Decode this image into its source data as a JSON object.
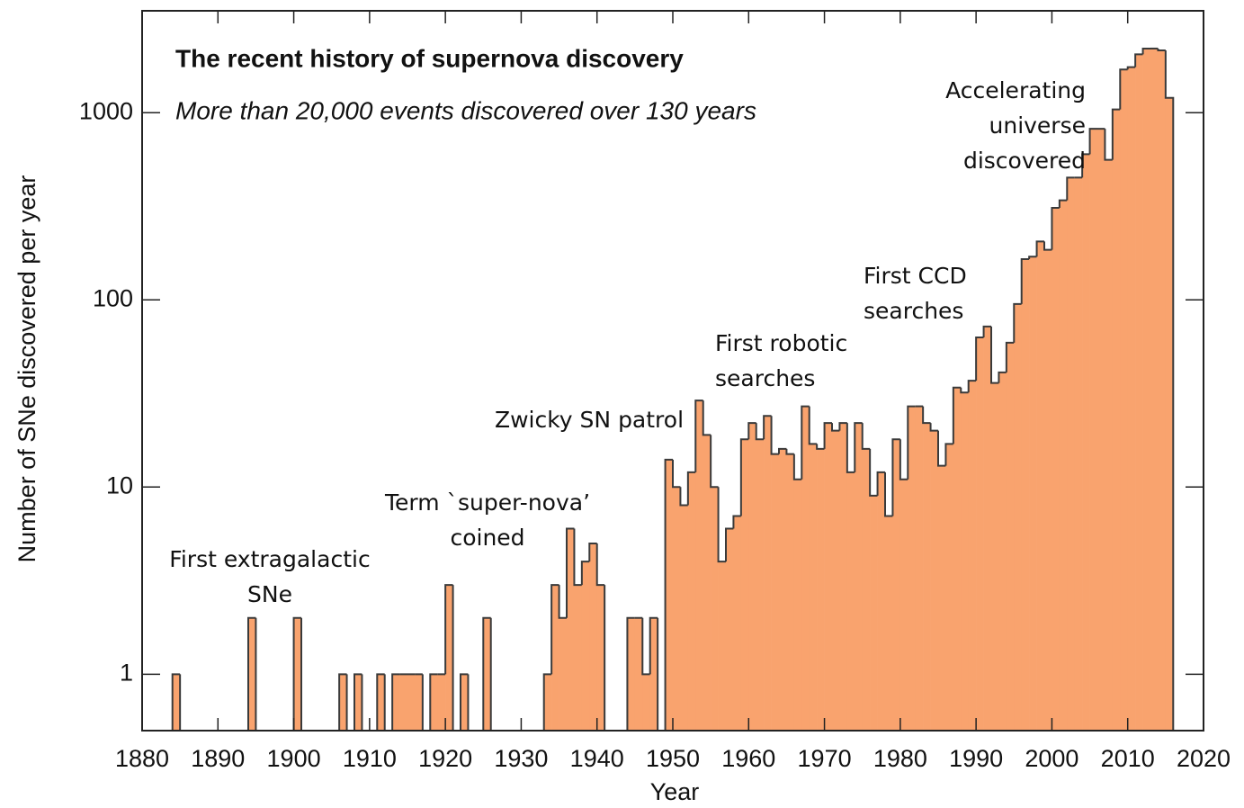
{
  "chart_data": {
    "type": "histogram",
    "title": "The recent history of supernova discovery",
    "subtitle": "More than 20,000 events discovered over 130 years",
    "x_label": "Year",
    "y_label": "Number of SNe discovered per year",
    "log_y": true,
    "color": "#f9a36e",
    "edge_color": "#3a3a3a",
    "xlim": [
      1880,
      2020
    ],
    "ylim": [
      0.5,
      3500
    ],
    "xticks": [
      1880,
      1890,
      1900,
      1910,
      1920,
      1930,
      1940,
      1950,
      1960,
      1970,
      1980,
      1990,
      2000,
      2010,
      2020
    ],
    "yticks": [
      1,
      10,
      100,
      1000
    ],
    "bins": [
      1884,
      1885,
      1886,
      1887,
      1888,
      1889,
      1890,
      1891,
      1892,
      1893,
      1894,
      1895,
      1896,
      1897,
      1898,
      1899,
      1900,
      1901,
      1902,
      1903,
      1904,
      1905,
      1906,
      1907,
      1908,
      1909,
      1910,
      1911,
      1912,
      1913,
      1914,
      1915,
      1916,
      1917,
      1918,
      1919,
      1920,
      1921,
      1922,
      1923,
      1924,
      1925,
      1926,
      1927,
      1928,
      1929,
      1930,
      1931,
      1932,
      1933,
      1934,
      1935,
      1936,
      1937,
      1938,
      1939,
      1940,
      1941,
      1942,
      1943,
      1944,
      1945,
      1946,
      1947,
      1948,
      1949,
      1950,
      1951,
      1952,
      1953,
      1954,
      1955,
      1956,
      1957,
      1958,
      1959,
      1960,
      1961,
      1962,
      1963,
      1964,
      1965,
      1966,
      1967,
      1968,
      1969,
      1970,
      1971,
      1972,
      1973,
      1974,
      1975,
      1976,
      1977,
      1978,
      1979,
      1980,
      1981,
      1982,
      1983,
      1984,
      1985,
      1986,
      1987,
      1988,
      1989,
      1990,
      1991,
      1992,
      1993,
      1994,
      1995,
      1996,
      1997,
      1998,
      1999,
      2000,
      2001,
      2002,
      2003,
      2004,
      2005,
      2006,
      2007,
      2008,
      2009,
      2010,
      2011,
      2012,
      2013,
      2014,
      2015,
      2016
    ],
    "values": [
      1,
      0,
      0,
      0,
      0,
      0,
      0,
      0,
      0,
      0,
      2,
      0,
      0,
      0,
      0,
      0,
      2,
      0,
      0,
      0,
      0,
      0,
      1,
      0,
      1,
      0,
      0,
      1,
      0,
      1,
      1,
      1,
      1,
      0,
      1,
      1,
      3,
      0,
      1,
      0,
      0,
      2,
      0,
      0,
      0,
      0,
      0,
      0,
      0,
      1,
      3,
      2,
      6,
      3,
      4,
      5,
      3,
      0,
      0,
      0,
      2,
      2,
      1,
      2,
      0,
      14,
      10,
      8,
      12,
      29,
      19,
      10,
      4,
      6,
      7,
      18,
      22,
      18,
      24,
      15,
      16,
      15,
      11,
      27,
      17,
      16,
      22,
      20,
      22,
      12,
      22,
      16,
      9,
      12,
      7,
      18,
      11,
      27,
      27,
      22,
      20,
      13,
      17,
      34,
      32,
      37,
      63,
      72,
      36,
      41,
      59,
      95,
      165,
      170,
      205,
      185,
      310,
      340,
      450,
      450,
      600,
      820,
      820,
      560,
      1040,
      1700,
      1750,
      2050,
      2200,
      2200,
      2150,
      1200
    ],
    "annotations": [
      {
        "lines": [
          "First extragalactic",
          "SNe"
        ]
      },
      {
        "lines": [
          "Term `super-nova’",
          "coined"
        ]
      },
      {
        "lines": [
          "Zwicky SN patrol"
        ]
      },
      {
        "lines": [
          "First robotic",
          "searches"
        ]
      },
      {
        "lines": [
          "First CCD",
          "searches"
        ]
      },
      {
        "lines": [
          "Accelerating",
          "universe",
          "discovered"
        ]
      }
    ]
  }
}
